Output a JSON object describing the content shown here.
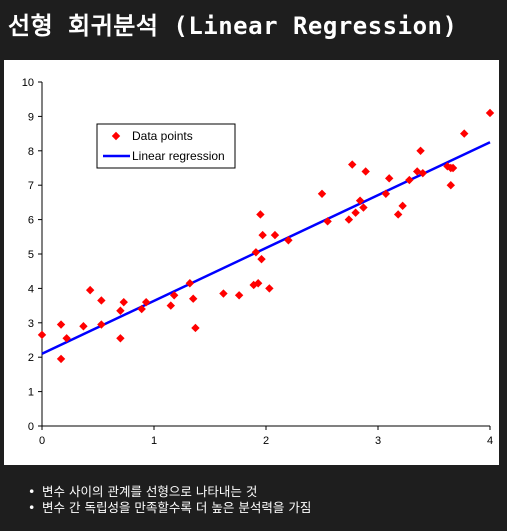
{
  "title": "선형 회귀분석 (Linear Regression)",
  "bullets": [
    "변수 사이의 관계를 선형으로 나타내는 것",
    "변수 간 독립성을 만족할수록 더 높은 분석력을 가짐"
  ],
  "bullet_symbol": "•",
  "colors": {
    "background": "#1e1e1e",
    "panel": "#ffffff",
    "points": "#ff0000",
    "line": "#0000ff"
  },
  "chart_data": {
    "type": "scatter",
    "title": "",
    "xlabel": "",
    "ylabel": "",
    "xlim": [
      0,
      4
    ],
    "ylim": [
      0,
      10
    ],
    "x_ticks": [
      "0",
      "1",
      "2",
      "3",
      "4"
    ],
    "y_ticks": [
      "0",
      "1",
      "2",
      "3",
      "4",
      "5",
      "6",
      "7",
      "8",
      "9",
      "10"
    ],
    "grid": false,
    "legend_position": "upper-left",
    "series": [
      {
        "name": "Data points",
        "kind": "points",
        "x": [
          0.0,
          0.17,
          0.17,
          0.22,
          0.37,
          0.43,
          0.53,
          0.53,
          0.7,
          0.7,
          0.73,
          0.89,
          0.93,
          1.15,
          1.18,
          1.32,
          1.35,
          1.37,
          1.62,
          1.76,
          1.89,
          1.91,
          1.93,
          1.95,
          1.96,
          1.97,
          2.03,
          2.08,
          2.2,
          2.5,
          2.55,
          2.74,
          2.77,
          2.8,
          2.84,
          2.87,
          2.89,
          3.07,
          3.1,
          3.18,
          3.22,
          3.28,
          3.35,
          3.38,
          3.4,
          3.62,
          3.65,
          3.65,
          3.67,
          3.77,
          4.0
        ],
        "y": [
          2.65,
          1.95,
          2.95,
          2.55,
          2.9,
          3.95,
          3.65,
          2.95,
          3.35,
          2.55,
          3.6,
          3.4,
          3.6,
          3.5,
          3.8,
          4.15,
          3.7,
          2.85,
          3.85,
          3.8,
          4.1,
          5.05,
          4.15,
          6.15,
          4.85,
          5.55,
          4.0,
          5.55,
          5.4,
          6.75,
          5.95,
          6.0,
          7.6,
          6.2,
          6.55,
          6.35,
          7.4,
          6.75,
          7.2,
          6.15,
          6.4,
          7.15,
          7.4,
          8.0,
          7.35,
          7.55,
          7.5,
          7.0,
          7.5,
          8.5,
          9.1
        ]
      },
      {
        "name": "Linear regression",
        "kind": "line",
        "x": [
          0,
          4
        ],
        "y": [
          2.1,
          8.25
        ]
      }
    ]
  }
}
